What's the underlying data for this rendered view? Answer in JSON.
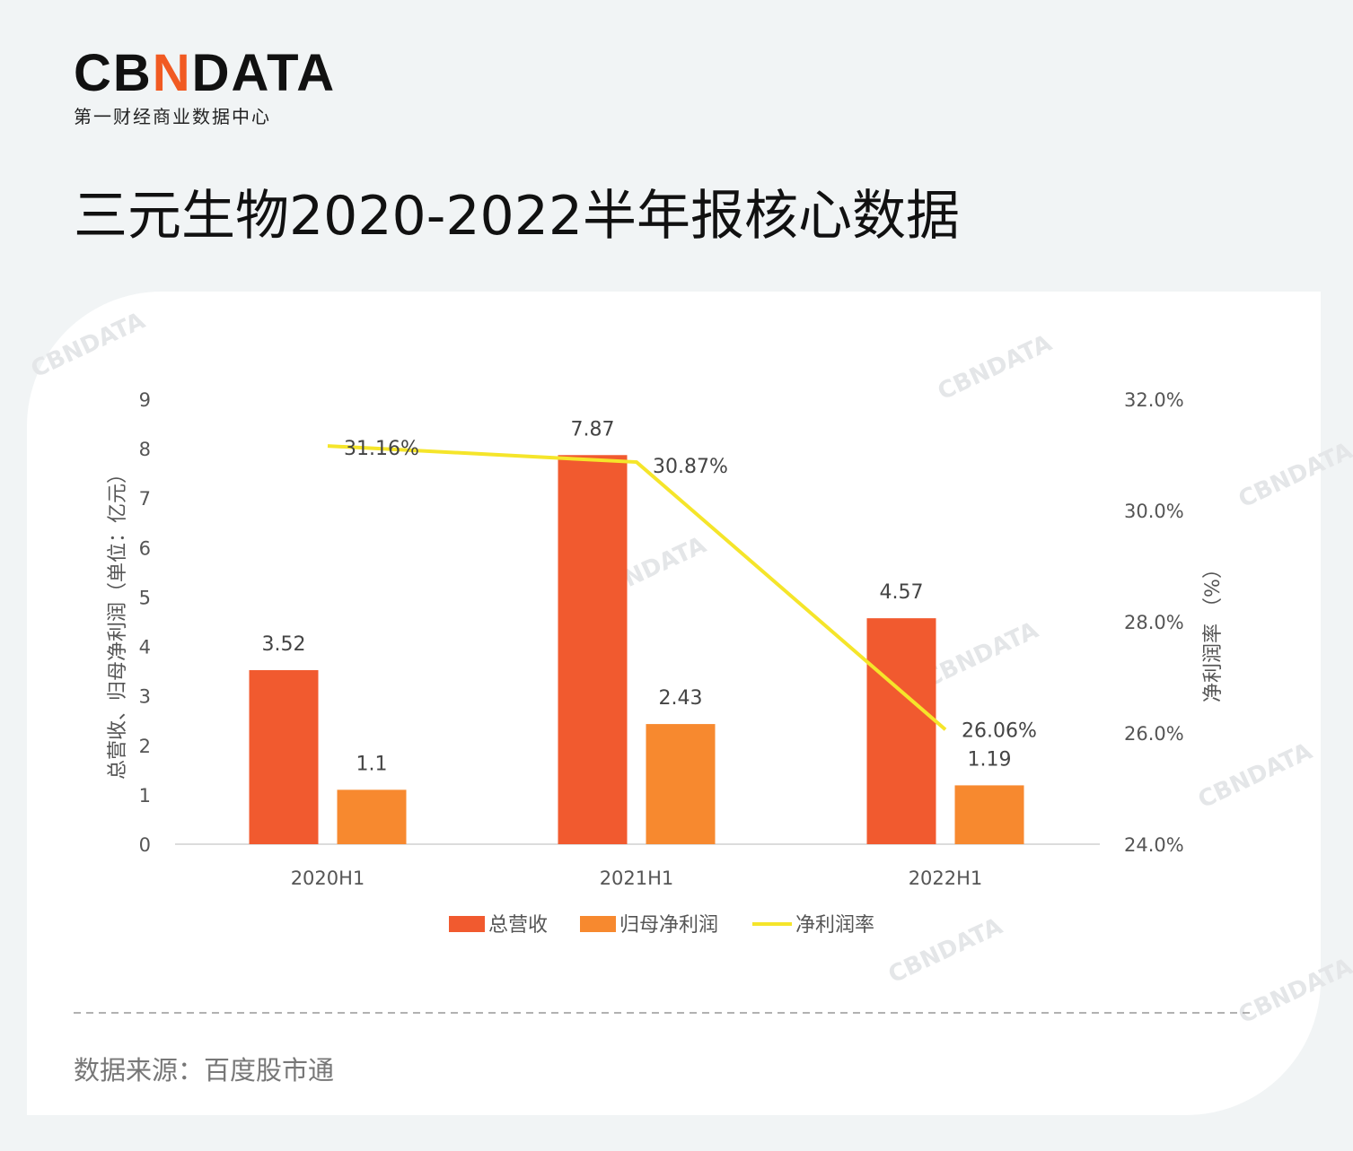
{
  "logo": {
    "text": "CBNDATA",
    "subtitle": "第一财经商业数据中心"
  },
  "title": "三元生物2020-2022半年报核心数据",
  "source": "数据来源：百度股市通",
  "watermark": "CBNDATA",
  "chart_data": {
    "type": "bar+line",
    "categories": [
      "2020H1",
      "2021H1",
      "2022H1"
    ],
    "series": [
      {
        "name": "总营收",
        "type": "bar",
        "axis": "left",
        "color": "#f15a2f",
        "values": [
          3.52,
          7.87,
          4.57
        ],
        "labels": [
          "3.52",
          "7.87",
          "4.57"
        ]
      },
      {
        "name": "归母净利润",
        "type": "bar",
        "axis": "left",
        "color": "#f7892f",
        "values": [
          1.1,
          2.43,
          1.19
        ],
        "labels": [
          "1.1",
          "2.43",
          "1.19"
        ]
      },
      {
        "name": "净利润率",
        "type": "line",
        "axis": "right",
        "color": "#f5e52a",
        "values": [
          31.16,
          30.87,
          26.06
        ],
        "labels": [
          "31.16%",
          "30.87%",
          "26.06%"
        ]
      }
    ],
    "ylabel": "总营收、归母净利润（单位：亿元）",
    "y2label": "净利润率 （%）",
    "ylim": [
      0,
      9
    ],
    "yticks": [
      "0",
      "1",
      "2",
      "3",
      "4",
      "5",
      "6",
      "7",
      "8",
      "9"
    ],
    "y2lim": [
      24,
      32
    ],
    "y2ticks": [
      "24.0%",
      "26.0%",
      "28.0%",
      "30.0%",
      "32.0%"
    ],
    "grid": false,
    "legend": "bottom"
  }
}
